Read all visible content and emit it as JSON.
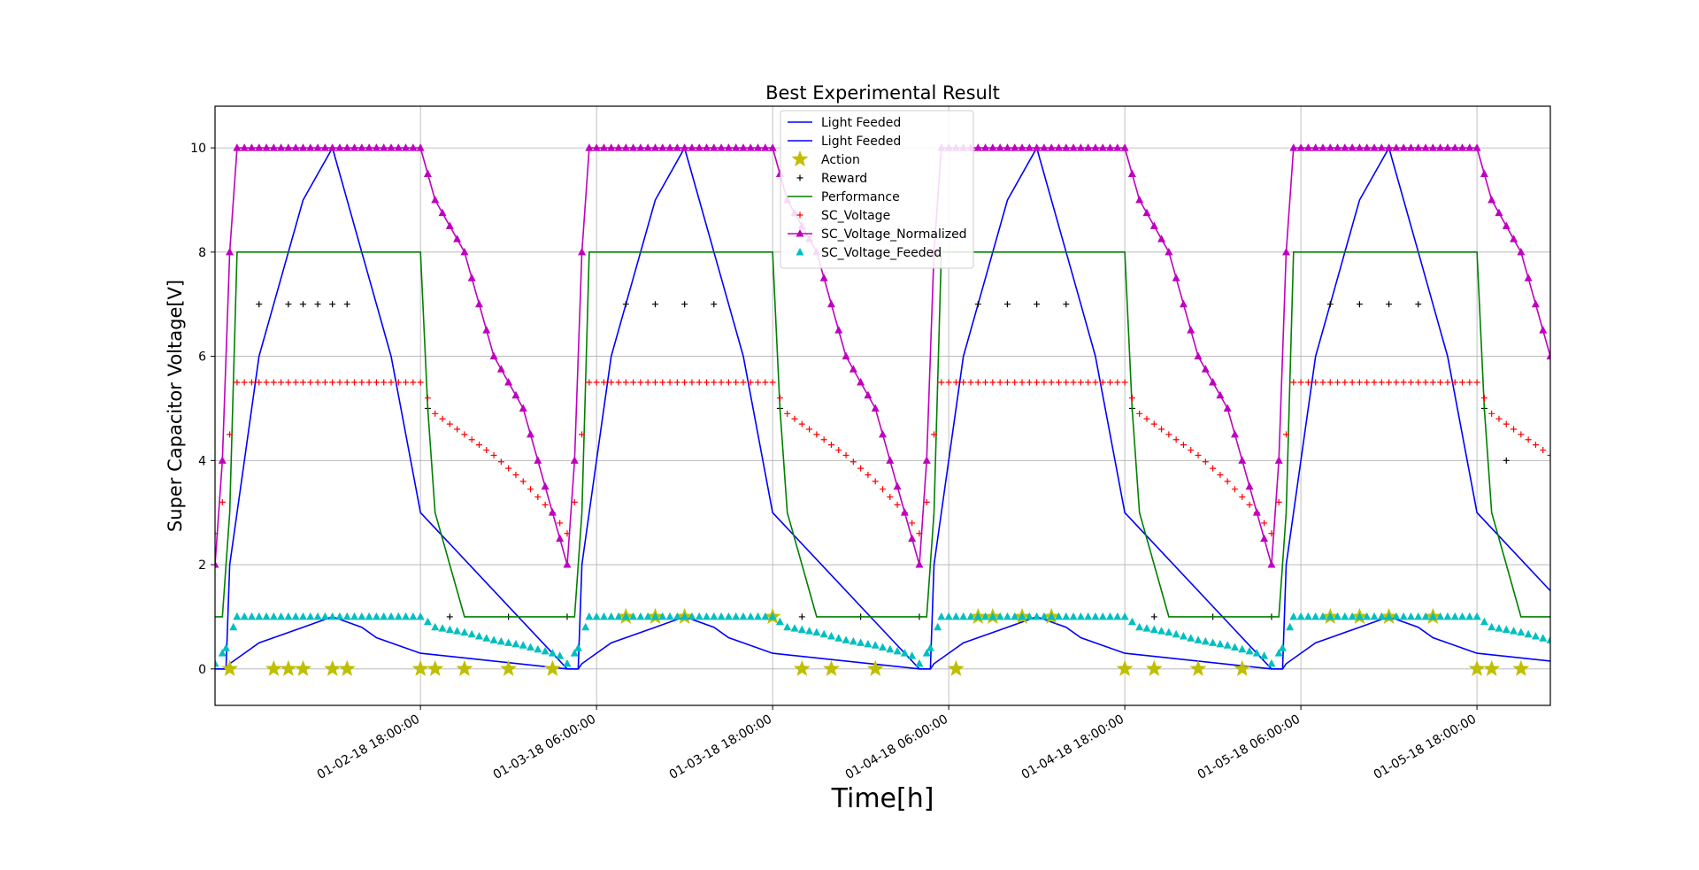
{
  "chart_data": {
    "type": "line",
    "title": "Best Experimental Result",
    "xlabel": "Time[h]",
    "ylabel": "Super Capacitor Voltage[V]",
    "xlim": [
      "2018-01-02 04:00",
      "2018-01-05 23:00"
    ],
    "ylim": [
      -0.7,
      10.8
    ],
    "yticks": [
      0,
      2,
      4,
      6,
      8,
      10
    ],
    "xticks": [
      {
        "value": "2018-01-02 18:00",
        "label": "01-02-18 18:00:00"
      },
      {
        "value": "2018-01-03 06:00",
        "label": "01-03-18 06:00:00"
      },
      {
        "value": "2018-01-03 18:00",
        "label": "01-03-18 18:00:00"
      },
      {
        "value": "2018-01-04 06:00",
        "label": "01-04-18 06:00:00"
      },
      {
        "value": "2018-01-04 18:00",
        "label": "01-04-18 18:00:00"
      },
      {
        "value": "2018-01-05 06:00",
        "label": "01-05-18 06:00:00"
      },
      {
        "value": "2018-01-05 18:00",
        "label": "01-05-18 18:00:00"
      }
    ],
    "grid": true,
    "legend_position": "top-center",
    "series": [
      {
        "name": "Light Feeded",
        "marker": "line",
        "color": "#0000ff",
        "periodic": true,
        "period_days": 1,
        "x": [
          "2018-01-02 04:00",
          "2018-01-02 04:45",
          "2018-01-02 05:00",
          "2018-01-02 06:00",
          "2018-01-02 07:00",
          "2018-01-02 08:00",
          "2018-01-02 09:00",
          "2018-01-02 10:00",
          "2018-01-02 12:00",
          "2018-01-02 14:00",
          "2018-01-02 15:00",
          "2018-01-02 16:00",
          "2018-01-02 18:00",
          "2018-01-03 04:00"
        ],
        "y": [
          0,
          0,
          2,
          4,
          6,
          7,
          8,
          9,
          10,
          8,
          7,
          6,
          3,
          0
        ]
      },
      {
        "name": "Light Feeded",
        "marker": "line",
        "color": "#0000ff",
        "periodic": true,
        "period_days": 1,
        "x": [
          "2018-01-02 04:00",
          "2018-01-02 04:45",
          "2018-01-02 05:00",
          "2018-01-02 06:00",
          "2018-01-02 07:00",
          "2018-01-02 08:00",
          "2018-01-02 10:00",
          "2018-01-02 12:00",
          "2018-01-02 14:00",
          "2018-01-02 15:00",
          "2018-01-02 16:00",
          "2018-01-02 18:00",
          "2018-01-03 04:00"
        ],
        "y": [
          0,
          0,
          0.1,
          0.3,
          0.5,
          0.6,
          0.8,
          1.0,
          0.8,
          0.6,
          0.5,
          0.3,
          0
        ]
      },
      {
        "name": "Action",
        "marker": "star",
        "color": "#bfbf00",
        "x": [
          "2018-01-02 05:00",
          "2018-01-02 08:00",
          "2018-01-02 09:00",
          "2018-01-02 10:00",
          "2018-01-02 12:00",
          "2018-01-02 13:00",
          "2018-01-02 18:00",
          "2018-01-02 19:00",
          "2018-01-02 21:00",
          "2018-01-03 00:00",
          "2018-01-03 03:00",
          "2018-01-03 08:00",
          "2018-01-03 10:00",
          "2018-01-03 12:00",
          "2018-01-03 18:00",
          "2018-01-03 20:00",
          "2018-01-03 22:00",
          "2018-01-04 01:00",
          "2018-01-04 06:30",
          "2018-01-04 08:00",
          "2018-01-04 09:00",
          "2018-01-04 11:00",
          "2018-01-04 13:00",
          "2018-01-04 18:00",
          "2018-01-04 20:00",
          "2018-01-04 23:00",
          "2018-01-05 02:00",
          "2018-01-05 08:00",
          "2018-01-05 10:00",
          "2018-01-05 12:00",
          "2018-01-05 15:00",
          "2018-01-05 18:00",
          "2018-01-05 19:00",
          "2018-01-05 21:00"
        ],
        "y": [
          0,
          0,
          0,
          0,
          0,
          0,
          0,
          0,
          0,
          0,
          0,
          1,
          1,
          1,
          1,
          0,
          0,
          0,
          0,
          1,
          1,
          1,
          1,
          0,
          0,
          0,
          0,
          1,
          1,
          1,
          1,
          0,
          0,
          0
        ]
      },
      {
        "name": "Reward",
        "marker": "plus",
        "color": "#000000",
        "x": [
          "2018-01-02 07:00",
          "2018-01-02 09:00",
          "2018-01-02 10:00",
          "2018-01-02 11:00",
          "2018-01-02 12:00",
          "2018-01-02 13:00",
          "2018-01-02 18:30",
          "2018-01-02 20:00",
          "2018-01-03 00:00",
          "2018-01-03 04:00",
          "2018-01-03 08:00",
          "2018-01-03 10:00",
          "2018-01-03 12:00",
          "2018-01-03 14:00",
          "2018-01-03 18:30",
          "2018-01-03 20:00",
          "2018-01-04 00:00",
          "2018-01-04 04:00",
          "2018-01-04 08:00",
          "2018-01-04 10:00",
          "2018-01-04 12:00",
          "2018-01-04 14:00",
          "2018-01-04 18:30",
          "2018-01-04 20:00",
          "2018-01-05 00:00",
          "2018-01-05 04:00",
          "2018-01-05 08:00",
          "2018-01-05 10:00",
          "2018-01-05 12:00",
          "2018-01-05 14:00",
          "2018-01-05 18:30",
          "2018-01-05 20:00"
        ],
        "y": [
          7,
          7,
          7,
          7,
          7,
          7,
          5,
          1,
          1,
          1,
          7,
          7,
          7,
          7,
          5,
          1,
          1,
          1,
          7,
          7,
          7,
          7,
          5,
          1,
          1,
          1,
          7,
          7,
          7,
          7,
          5,
          4
        ]
      },
      {
        "name": "Performance",
        "marker": "line",
        "color": "#008000",
        "periodic": true,
        "period_days": 1,
        "x": [
          "2018-01-02 04:00",
          "2018-01-02 04:30",
          "2018-01-02 05:00",
          "2018-01-02 05:30",
          "2018-01-02 18:00",
          "2018-01-02 18:30",
          "2018-01-02 19:00",
          "2018-01-02 20:00",
          "2018-01-02 21:00",
          "2018-01-03 04:00"
        ],
        "y": [
          1,
          1,
          3,
          8,
          8,
          5,
          3,
          2,
          1,
          1
        ]
      },
      {
        "name": "SC_Voltage",
        "marker": "plus",
        "color": "#ff0000",
        "periodic": true,
        "period_days": 1,
        "x": [
          "2018-01-02 04:00",
          "2018-01-02 04:30",
          "2018-01-02 05:00",
          "2018-01-02 05:30",
          "2018-01-02 18:00",
          "2018-01-02 19:00",
          "2018-01-02 21:00",
          "2018-01-02 23:00",
          "2018-01-03 01:00",
          "2018-01-03 03:00",
          "2018-01-03 04:00"
        ],
        "y": [
          2.6,
          3.2,
          4.5,
          5.5,
          5.5,
          4.9,
          4.5,
          4.1,
          3.6,
          3.0,
          2.6
        ]
      },
      {
        "name": "SC_Voltage_Normalized",
        "marker": "triangle-line",
        "color": "#bf00bf",
        "periodic": true,
        "period_days": 1,
        "x": [
          "2018-01-02 04:00",
          "2018-01-02 04:30",
          "2018-01-02 05:00",
          "2018-01-02 05:30",
          "2018-01-02 18:00",
          "2018-01-02 19:00",
          "2018-01-02 21:00",
          "2018-01-02 23:00",
          "2018-01-03 01:00",
          "2018-01-03 03:00",
          "2018-01-03 04:00"
        ],
        "y": [
          2,
          4,
          8,
          10,
          10,
          9,
          8,
          6,
          5,
          3,
          2
        ]
      },
      {
        "name": "SC_Voltage_Feeded",
        "marker": "triangle",
        "color": "#00bfbf",
        "periodic": true,
        "period_days": 1,
        "x": [
          "2018-01-02 04:00",
          "2018-01-02 04:45",
          "2018-01-02 05:30",
          "2018-01-02 18:00",
          "2018-01-02 19:00",
          "2018-01-02 21:00",
          "2018-01-02 23:00",
          "2018-01-03 01:00",
          "2018-01-03 03:00",
          "2018-01-03 04:00"
        ],
        "y": [
          0.1,
          0.4,
          1.0,
          1.0,
          0.8,
          0.7,
          0.55,
          0.45,
          0.3,
          0.2
        ]
      }
    ]
  }
}
